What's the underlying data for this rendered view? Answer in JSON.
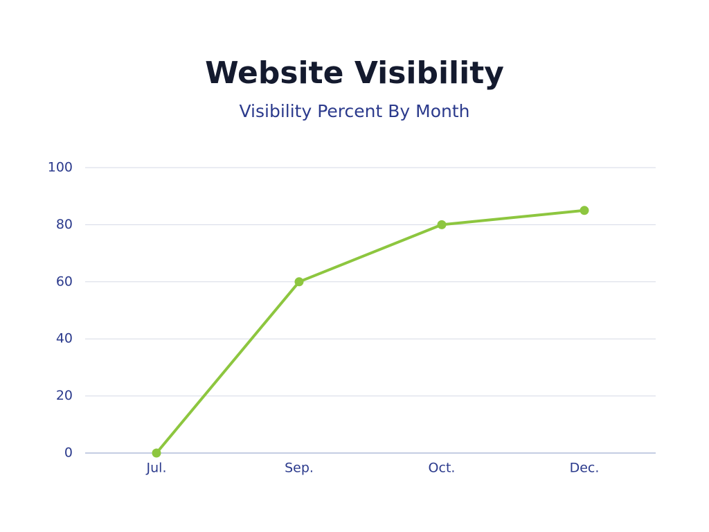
{
  "chart_data": {
    "type": "line",
    "title": "Website Visibility",
    "subtitle": "Visibility Percent By Month",
    "categories": [
      "Jul.",
      "Sep.",
      "Oct.",
      "Dec."
    ],
    "values": [
      0,
      60,
      80,
      85
    ],
    "color": "#8dc63f",
    "ylim": [
      0,
      100
    ],
    "yticks": [
      0,
      20,
      40,
      60,
      80,
      100
    ],
    "grid": true
  }
}
